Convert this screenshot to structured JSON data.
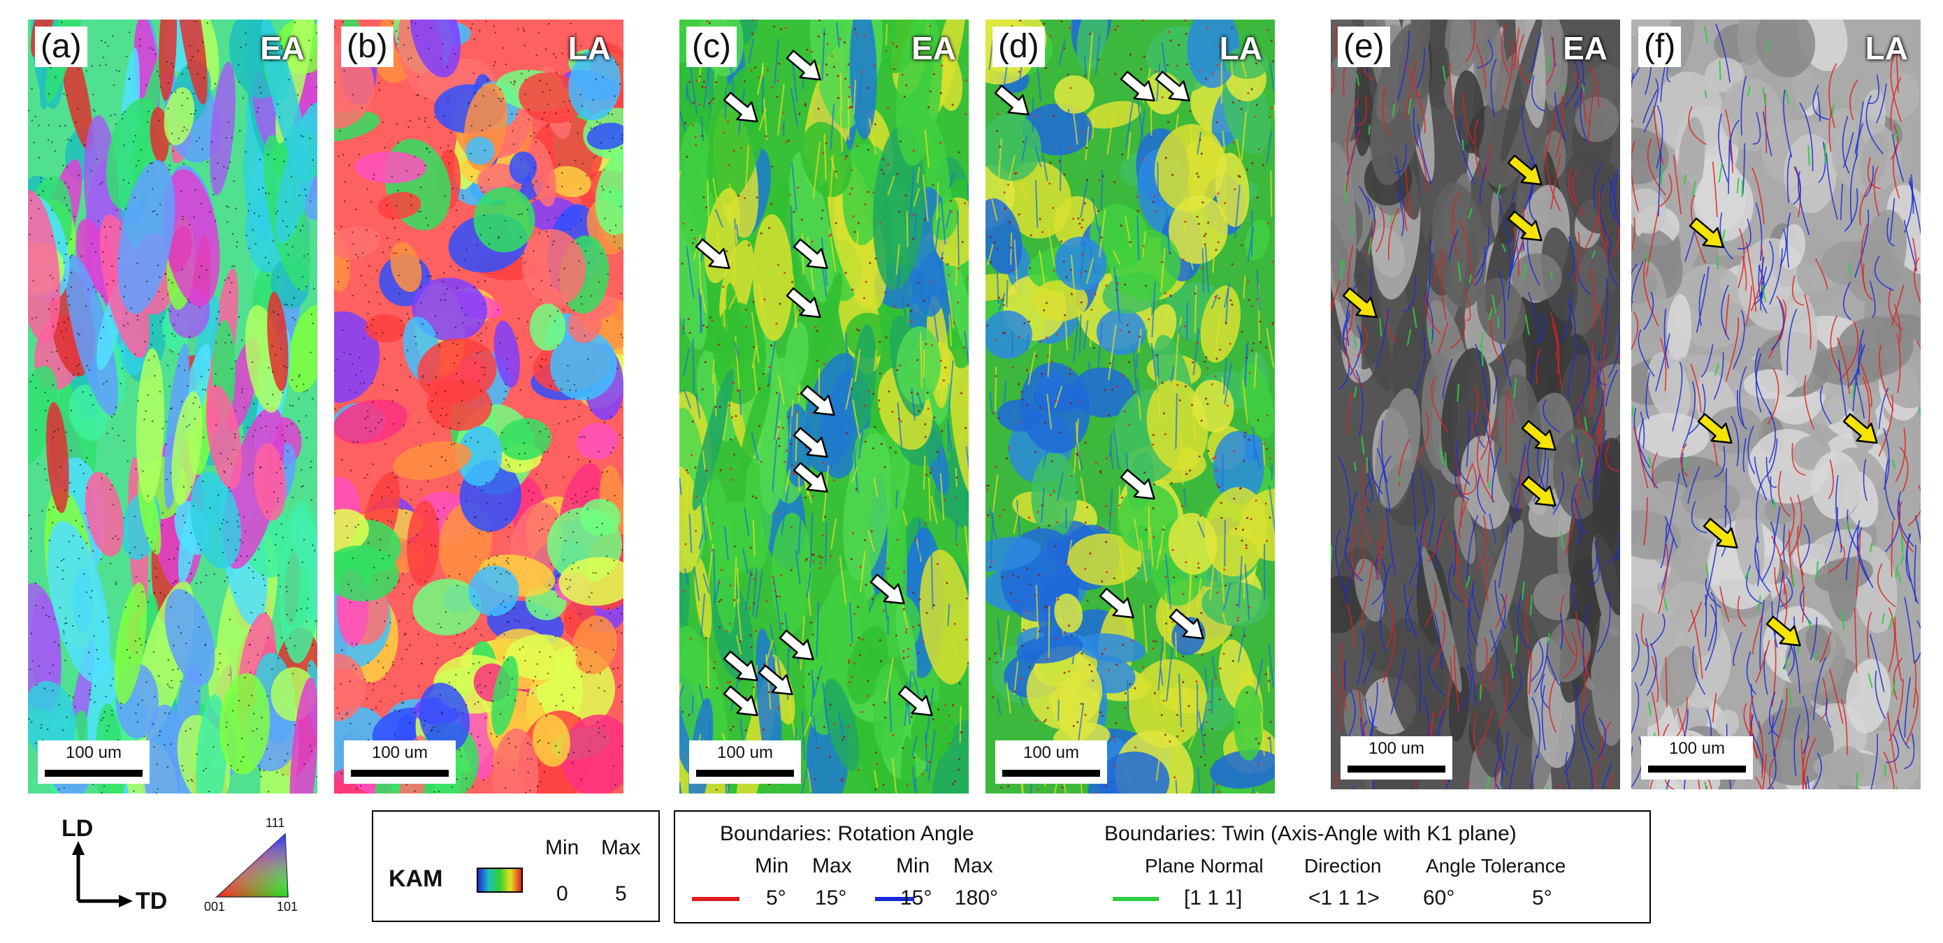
{
  "panels": [
    {
      "label": "(a)",
      "tag": "EA",
      "kind": "ipf-ea",
      "scale": "100 um"
    },
    {
      "label": "(b)",
      "tag": "LA",
      "kind": "ipf-la",
      "scale": "100 um"
    },
    {
      "label": "(c)",
      "tag": "EA",
      "kind": "kam-ea",
      "scale": "100 um"
    },
    {
      "label": "(d)",
      "tag": "LA",
      "kind": "kam-la",
      "scale": "100 um"
    },
    {
      "label": "(e)",
      "tag": "EA",
      "kind": "bnd-ea",
      "scale": "100 um"
    },
    {
      "label": "(f)",
      "tag": "LA",
      "kind": "bnd-la",
      "scale": "100 um"
    }
  ],
  "axes": {
    "ld": "LD",
    "td": "TD"
  },
  "ipf_key": {
    "top": "111",
    "left": "001",
    "right": "101"
  },
  "kam": {
    "label": "KAM",
    "min_label": "Min",
    "max_label": "Max",
    "min": "0",
    "max": "5"
  },
  "rotation": {
    "title": "Boundaries: Rotation Angle",
    "min_label": "Min",
    "max_label": "Max",
    "red_min": "5°",
    "red_max": "15°",
    "blue_min": "15°",
    "blue_max": "180°"
  },
  "twin": {
    "title": "Boundaries: Twin (Axis-Angle with K1 plane)",
    "plane_normal_label": "Plane Normal",
    "direction_label": "Direction",
    "tolerance_label": "Angle Tolerance",
    "plane_normal": "[1 1 1]",
    "direction": "<1 1 1>",
    "angle": "60°",
    "tolerance": "5°"
  },
  "colors": {
    "low_angle": "#e02020",
    "high_angle": "#1a2bd6",
    "twin": "#2ecc40",
    "white_arrow": "#ffffff",
    "yellow_arrow": "#f5e400"
  }
}
